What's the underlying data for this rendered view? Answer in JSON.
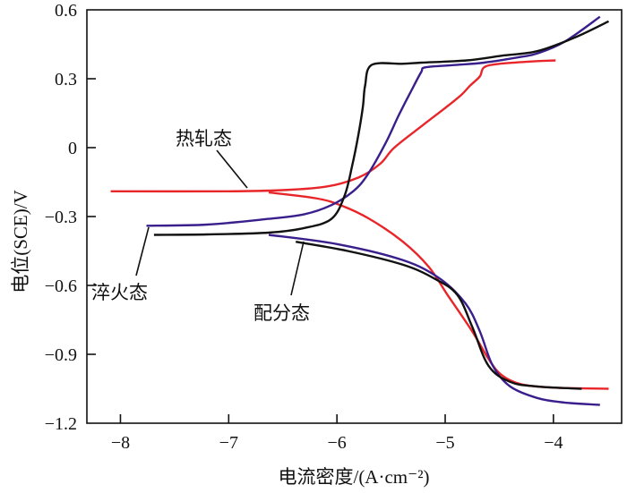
{
  "chart_data": {
    "type": "line",
    "title": "",
    "xlabel": "电流密度/(A·cm⁻²)",
    "ylabel": "电位(SCE)/V",
    "xlim": [
      -8.31,
      -3.37
    ],
    "ylim": [
      -1.2,
      0.6
    ],
    "x_ticks": [
      -8,
      -7,
      -6,
      -5,
      -4
    ],
    "x_tick_labels": [
      "−8",
      "−7",
      "−6",
      "−5",
      "−4"
    ],
    "y_ticks": [
      0.6,
      0.3,
      0,
      -0.3,
      -0.6,
      -0.9,
      -1.2
    ],
    "y_tick_labels": [
      "0.6",
      "0.3",
      "0",
      "−0.3",
      "−0.6",
      "−0.9",
      "−1.2"
    ],
    "grid": false,
    "series": [
      {
        "name": "热轧态",
        "color": "#e8262a",
        "anodic": [
          [
            -8.09,
            -0.19
          ],
          [
            -7.0,
            -0.19
          ],
          [
            -6.5,
            -0.185
          ],
          [
            -6.1,
            -0.17
          ],
          [
            -5.8,
            -0.13
          ],
          [
            -5.6,
            -0.07
          ],
          [
            -5.47,
            0.0
          ],
          [
            -5.2,
            0.1
          ],
          [
            -4.98,
            0.18
          ],
          [
            -4.85,
            0.23
          ],
          [
            -4.77,
            0.27
          ],
          [
            -4.68,
            0.31
          ],
          [
            -4.64,
            0.35
          ],
          [
            -4.5,
            0.365
          ],
          [
            -4.2,
            0.375
          ],
          [
            -3.98,
            0.38
          ]
        ],
        "cathodic": [
          [
            -6.63,
            -0.195
          ],
          [
            -6.2,
            -0.22
          ],
          [
            -5.97,
            -0.25
          ],
          [
            -5.7,
            -0.31
          ],
          [
            -5.39,
            -0.41
          ],
          [
            -5.15,
            -0.52
          ],
          [
            -4.98,
            -0.64
          ],
          [
            -4.75,
            -0.8
          ],
          [
            -4.6,
            -0.92
          ],
          [
            -4.48,
            -0.99
          ],
          [
            -4.3,
            -1.03
          ],
          [
            -4.0,
            -1.045
          ],
          [
            -3.49,
            -1.05
          ]
        ]
      },
      {
        "name": "淬火态",
        "color": "#3a1f8c",
        "anodic": [
          [
            -7.76,
            -0.34
          ],
          [
            -7.2,
            -0.335
          ],
          [
            -6.63,
            -0.31
          ],
          [
            -6.3,
            -0.29
          ],
          [
            -6.05,
            -0.25
          ],
          [
            -5.85,
            -0.19
          ],
          [
            -5.72,
            -0.12
          ],
          [
            -5.55,
            0.02
          ],
          [
            -5.43,
            0.14
          ],
          [
            -5.3,
            0.26
          ],
          [
            -5.22,
            0.33
          ],
          [
            -5.18,
            0.35
          ],
          [
            -4.9,
            0.36
          ],
          [
            -4.64,
            0.37
          ],
          [
            -4.3,
            0.395
          ],
          [
            -4.15,
            0.41
          ],
          [
            -3.9,
            0.46
          ],
          [
            -3.57,
            0.57
          ]
        ],
        "cathodic": [
          [
            -6.63,
            -0.38
          ],
          [
            -6.0,
            -0.42
          ],
          [
            -5.39,
            -0.49
          ],
          [
            -5.05,
            -0.57
          ],
          [
            -4.81,
            -0.68
          ],
          [
            -4.68,
            -0.8
          ],
          [
            -4.56,
            -0.95
          ],
          [
            -4.4,
            -1.04
          ],
          [
            -4.15,
            -1.09
          ],
          [
            -3.9,
            -1.11
          ],
          [
            -3.57,
            -1.12
          ]
        ]
      },
      {
        "name": "配分态",
        "color": "#111111",
        "anodic": [
          [
            -7.69,
            -0.38
          ],
          [
            -7.2,
            -0.378
          ],
          [
            -6.63,
            -0.37
          ],
          [
            -6.3,
            -0.35
          ],
          [
            -6.05,
            -0.31
          ],
          [
            -5.93,
            -0.21
          ],
          [
            -5.86,
            -0.08
          ],
          [
            -5.8,
            0.06
          ],
          [
            -5.76,
            0.18
          ],
          [
            -5.74,
            0.27
          ],
          [
            -5.68,
            0.36
          ],
          [
            -5.4,
            0.365
          ],
          [
            -5.22,
            0.37
          ],
          [
            -4.8,
            0.38
          ],
          [
            -4.48,
            0.4
          ],
          [
            -4.15,
            0.42
          ],
          [
            -3.8,
            0.48
          ],
          [
            -3.49,
            0.55
          ]
        ],
        "cathodic": [
          [
            -6.38,
            -0.41
          ],
          [
            -5.9,
            -0.45
          ],
          [
            -5.39,
            -0.51
          ],
          [
            -5.1,
            -0.57
          ],
          [
            -4.89,
            -0.64
          ],
          [
            -4.75,
            -0.78
          ],
          [
            -4.6,
            -0.95
          ],
          [
            -4.4,
            -1.02
          ],
          [
            -4.15,
            -1.04
          ],
          [
            -3.74,
            -1.05
          ]
        ]
      }
    ],
    "annotations": [
      {
        "text": "热轧态",
        "series": "热轧态"
      },
      {
        "text": "淬火态",
        "series": "淬火态"
      },
      {
        "text": "配分态",
        "series": "配分态"
      }
    ]
  }
}
